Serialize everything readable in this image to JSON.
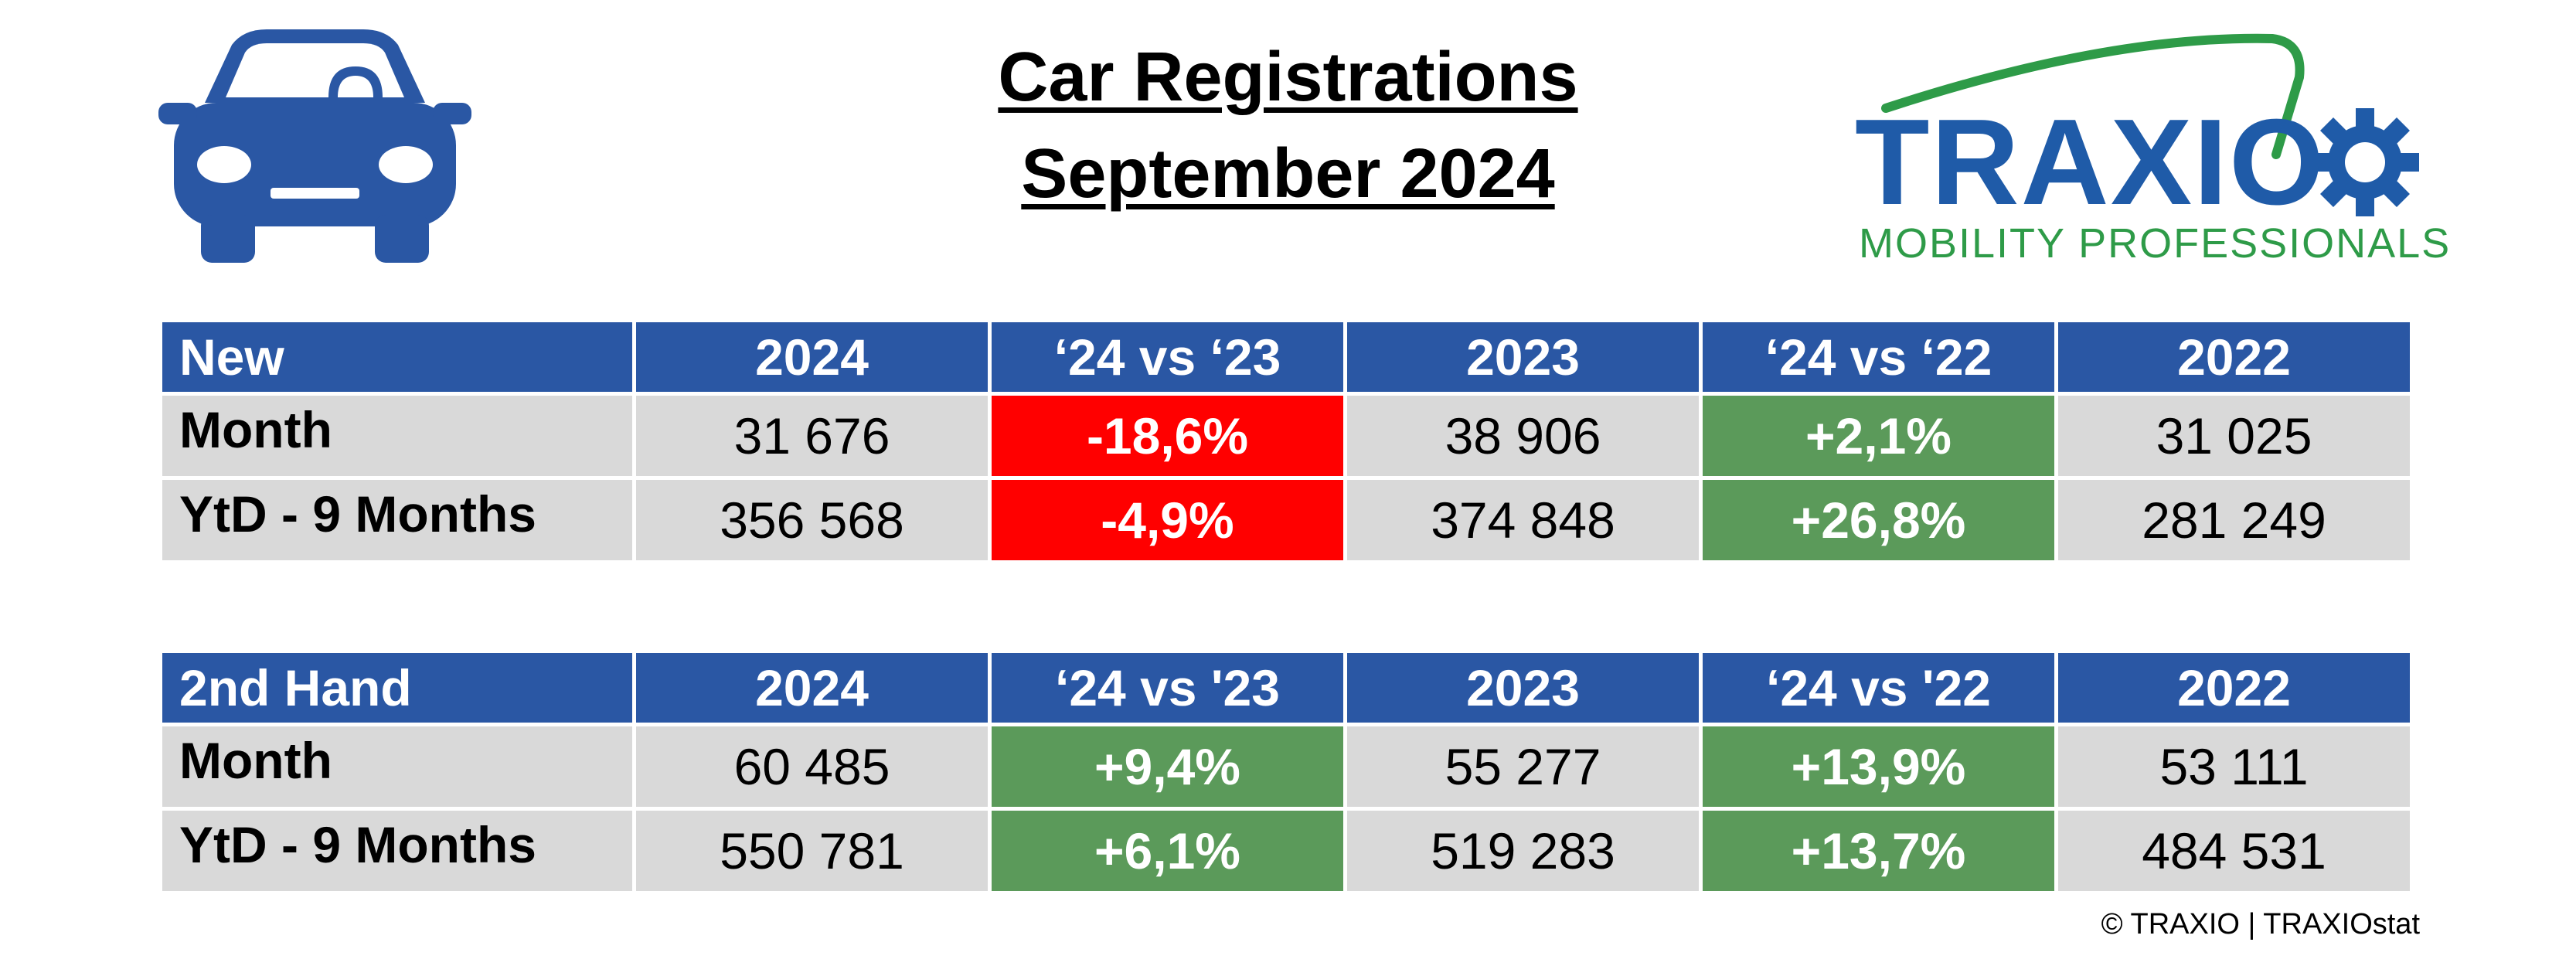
{
  "title": {
    "line1": "Car Registrations",
    "line2": "September 2024"
  },
  "icons": {
    "car": "car-front-icon",
    "logo": "traxio-logo"
  },
  "colors": {
    "header_blue": "#2a57a4",
    "negative_red": "#ff0000",
    "positive_green": "#5b9a5a",
    "cell_gray": "#d9d9d9",
    "logo_blue": "#1f5ba8",
    "logo_green": "#2e9b48"
  },
  "logo": {
    "word": "TRAXIO",
    "tagline": "MOBILITY PROFESSIONALS"
  },
  "tables": [
    {
      "headers": [
        "New",
        "2024",
        "‘24 vs ‘23",
        "2023",
        "‘24 vs ‘22",
        "2022"
      ],
      "rows": [
        {
          "label": "Month",
          "v2024": "31 676",
          "d23": "-18,6%",
          "v2023": "38 906",
          "d22": "+2,1%",
          "v2022": "31 025"
        },
        {
          "label": "YtD - 9 Months",
          "v2024": "356 568",
          "d23": "-4,9%",
          "v2023": "374 848",
          "d22": "+26,8%",
          "v2022": "281 249"
        }
      ]
    },
    {
      "headers": [
        "2nd Hand",
        "2024",
        "‘24 vs '23",
        "2023",
        "‘24 vs '22",
        "2022"
      ],
      "rows": [
        {
          "label": "Month",
          "v2024": "60 485",
          "d23": "+9,4%",
          "v2023": "55 277",
          "d22": "+13,9%",
          "v2022": "53 111"
        },
        {
          "label": "YtD - 9 Months",
          "v2024": "550 781",
          "d23": "+6,1%",
          "v2023": "519 283",
          "d22": "+13,7%",
          "v2022": "484 531"
        }
      ]
    }
  ],
  "footer": "© TRAXIO | TRAXIOstat"
}
